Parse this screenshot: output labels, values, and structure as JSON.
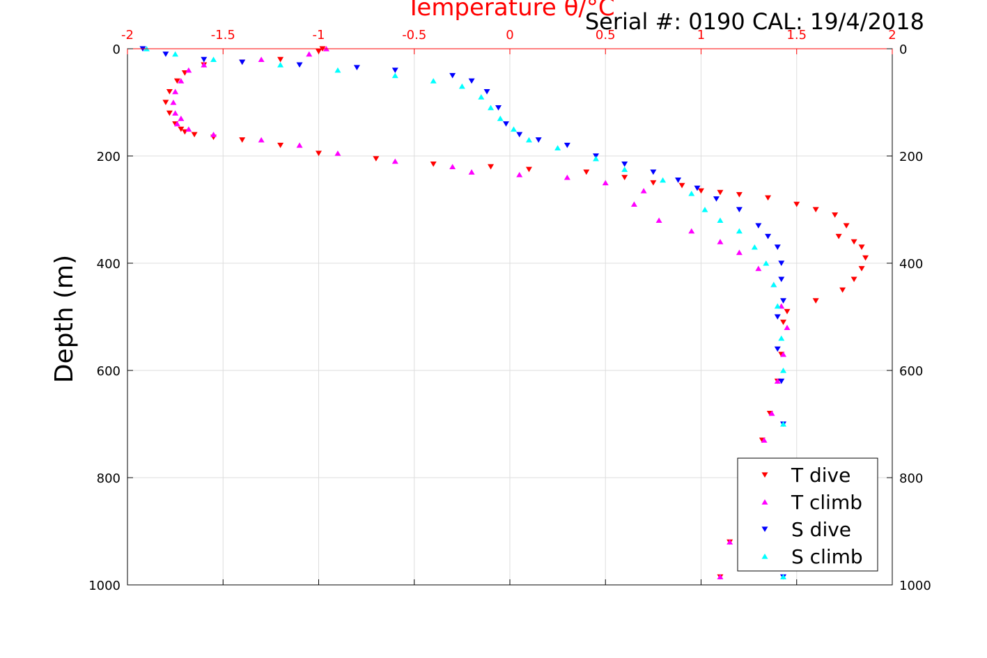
{
  "chart_data": {
    "type": "scatter",
    "title": "Temperature θ/°C",
    "annotation": "Serial #: 0190  CAL: 19/4/2018",
    "xlabel": "",
    "ylabel": "Depth (m)",
    "xlim": [
      -2,
      2
    ],
    "ylim": [
      0,
      1000
    ],
    "y_reversed": true,
    "x_axis_position": "top",
    "grid": true,
    "legend_position": "bottom-right",
    "x_ticks": [
      -2,
      -1.5,
      -1,
      -0.5,
      0,
      0.5,
      1,
      1.5,
      2
    ],
    "x_tick_labels": [
      "-2",
      "-1.5",
      "-1",
      "-0.5",
      "0",
      "0.5",
      "1",
      "1.5",
      "2"
    ],
    "y_ticks": [
      0,
      200,
      400,
      600,
      800,
      1000
    ],
    "y_tick_labels": [
      "0",
      "200",
      "400",
      "600",
      "800",
      "1000"
    ],
    "colors": {
      "axis_top": "#ff0000",
      "axis_other": "#000000",
      "grid": "#dddddd"
    },
    "series": [
      {
        "name": "T dive",
        "marker": "triangle-down",
        "color": "#ff0000",
        "x": [
          -0.98,
          -1.0,
          -1.2,
          -1.4,
          -1.6,
          -1.7,
          -1.74,
          -1.78,
          -1.8,
          -1.78,
          -1.75,
          -1.72,
          -1.7,
          -1.65,
          -1.55,
          -1.4,
          -1.2,
          -1.0,
          -0.7,
          -0.4,
          -0.1,
          0.1,
          0.4,
          0.6,
          0.75,
          0.9,
          1.0,
          1.1,
          1.2,
          1.35,
          1.5,
          1.6,
          1.7,
          1.76,
          1.72,
          1.8,
          1.84,
          1.86,
          1.84,
          1.8,
          1.74,
          1.6,
          1.45,
          1.43,
          1.42,
          1.4,
          1.36,
          1.32,
          1.28,
          1.22,
          1.15,
          1.1
        ],
        "y": [
          0,
          5,
          20,
          25,
          30,
          45,
          60,
          80,
          100,
          120,
          140,
          150,
          155,
          160,
          165,
          170,
          180,
          195,
          205,
          215,
          220,
          225,
          230,
          240,
          250,
          255,
          265,
          268,
          272,
          278,
          290,
          300,
          310,
          330,
          350,
          360,
          370,
          390,
          410,
          430,
          450,
          470,
          490,
          510,
          570,
          620,
          680,
          730,
          780,
          860,
          920,
          985
        ]
      },
      {
        "name": "T climb",
        "marker": "triangle-up",
        "color": "#ff00ff",
        "x": [
          -0.96,
          -1.05,
          -1.3,
          -1.6,
          -1.68,
          -1.72,
          -1.75,
          -1.76,
          -1.75,
          -1.72,
          -1.74,
          -1.68,
          -1.55,
          -1.3,
          -1.1,
          -0.9,
          -0.6,
          -0.3,
          -0.2,
          0.05,
          0.3,
          0.5,
          0.7,
          0.65,
          0.78,
          0.95,
          1.1,
          1.2,
          1.3,
          1.38,
          1.42,
          1.45,
          1.43,
          1.4,
          1.37,
          1.33,
          1.28,
          1.22,
          1.15,
          1.1
        ],
        "y": [
          0,
          10,
          20,
          30,
          40,
          60,
          80,
          100,
          120,
          130,
          140,
          150,
          160,
          170,
          180,
          195,
          210,
          220,
          230,
          235,
          240,
          250,
          265,
          290,
          320,
          340,
          360,
          380,
          410,
          440,
          480,
          520,
          570,
          620,
          680,
          730,
          780,
          860,
          920,
          985
        ]
      },
      {
        "name": "S dive",
        "marker": "triangle-down",
        "color": "#0000ff",
        "x": [
          -1.92,
          -1.8,
          -1.6,
          -1.4,
          -1.1,
          -0.8,
          -0.6,
          -0.3,
          -0.2,
          -0.12,
          -0.06,
          -0.02,
          0.05,
          0.15,
          0.3,
          0.45,
          0.6,
          0.75,
          0.88,
          0.98,
          1.08,
          1.2,
          1.3,
          1.35,
          1.4,
          1.42,
          1.42,
          1.43,
          1.4,
          1.4,
          1.42,
          1.43,
          1.43,
          1.43
        ],
        "y": [
          0,
          10,
          20,
          25,
          30,
          35,
          40,
          50,
          60,
          80,
          110,
          140,
          160,
          170,
          180,
          200,
          215,
          230,
          245,
          260,
          280,
          300,
          330,
          350,
          370,
          400,
          430,
          470,
          500,
          560,
          620,
          700,
          780,
          985
        ]
      },
      {
        "name": "S climb",
        "marker": "triangle-up",
        "color": "#00ffff",
        "x": [
          -1.9,
          -1.75,
          -1.55,
          -1.2,
          -0.9,
          -0.6,
          -0.4,
          -0.25,
          -0.15,
          -0.1,
          -0.05,
          0.02,
          0.1,
          0.25,
          0.45,
          0.6,
          0.8,
          0.95,
          1.02,
          1.1,
          1.2,
          1.28,
          1.34,
          1.38,
          1.4,
          1.42,
          1.43,
          1.43,
          1.43
        ],
        "y": [
          0,
          10,
          20,
          30,
          40,
          50,
          60,
          70,
          90,
          110,
          130,
          150,
          170,
          185,
          205,
          225,
          245,
          270,
          300,
          320,
          340,
          370,
          400,
          440,
          480,
          540,
          600,
          700,
          985
        ]
      }
    ]
  }
}
